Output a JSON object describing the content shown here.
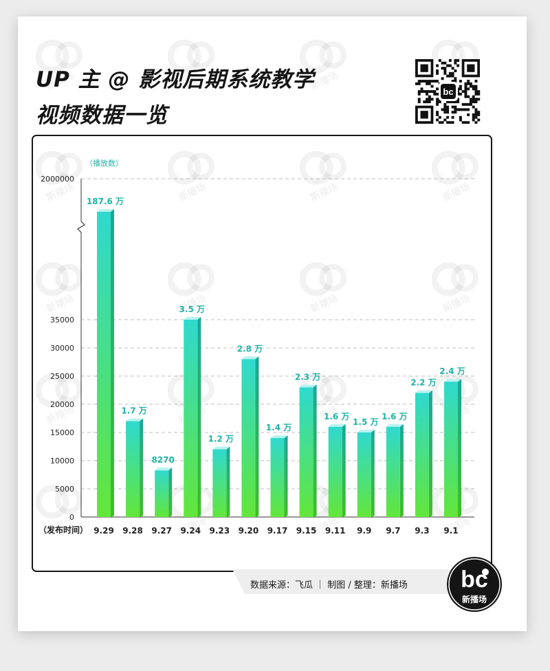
{
  "title_line1": "UP 主 @ 影视后期系统教学",
  "title_line2": "视频数据一览",
  "source": {
    "text": "数据来源：飞瓜  ｜  制图 / 整理：新播场"
  },
  "logo": {
    "mark": "bc",
    "text": "新播场"
  },
  "watermark_text": "新播场",
  "chart_data": {
    "type": "bar",
    "ylabel": "（播放数）",
    "xlabel": "（发布时间）",
    "categories": [
      "9.29",
      "9.28",
      "9.27",
      "9.24",
      "9.23",
      "9.20",
      "9.17",
      "9.15",
      "9.11",
      "9.9",
      "9.7",
      "9.3",
      "9.1"
    ],
    "values": [
      1876000,
      17000,
      8270,
      35000,
      12000,
      28000,
      14000,
      23000,
      16000,
      15000,
      16000,
      22000,
      24000
    ],
    "data_labels": [
      "187.6 万",
      "1.7 万",
      "8270",
      "3.5 万",
      "1.2 万",
      "2.8 万",
      "1.4 万",
      "2.3 万",
      "1.6 万",
      "1.5 万",
      "1.6 万",
      "2.2 万",
      "2.4 万"
    ],
    "y_ticks": [
      0,
      5000,
      10000,
      15000,
      20000,
      25000,
      30000,
      35000,
      2000000
    ],
    "y_tick_labels": [
      "0",
      "5000",
      "10000",
      "15000",
      "20000",
      "25000",
      "30000",
      "35000",
      "2000000"
    ],
    "ylim": [
      0,
      2000000
    ],
    "axis_break": "between 35000 and 2000000",
    "grid": true,
    "colors": {
      "bar_top": "#2fd9cf",
      "bar_bottom": "#63e63a",
      "bar_side": "#19a79a",
      "label": "#20b3a6",
      "grid": "#bcbcbc"
    }
  }
}
